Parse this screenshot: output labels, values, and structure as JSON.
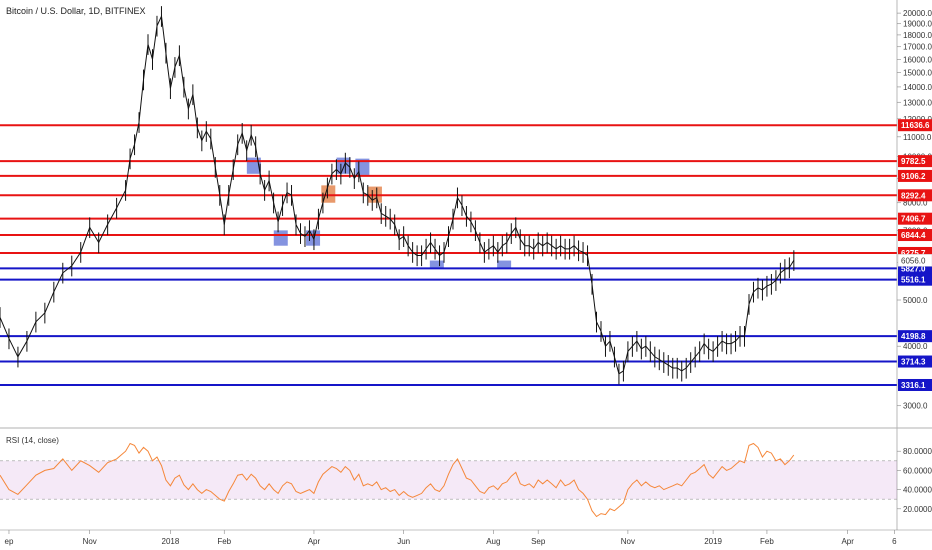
{
  "chart_data": [
    {
      "type": "line",
      "title": "Bitcoin / U.S. Dollar, 1D, BITFINEX",
      "ylim": [
        2800,
        20500
      ],
      "price_ticks": [
        20000,
        19000,
        18000,
        17000,
        16000,
        15000,
        14000,
        13000,
        12000,
        11000,
        10000,
        9000,
        8000,
        7000,
        6000,
        5000,
        4000,
        3000
      ],
      "x_ticks": [
        {
          "label": "ep",
          "t": 0.01
        },
        {
          "label": "Nov",
          "t": 0.1
        },
        {
          "label": "2018",
          "t": 0.19
        },
        {
          "label": "Feb",
          "t": 0.25
        },
        {
          "label": "Apr",
          "t": 0.35
        },
        {
          "label": "Jun",
          "t": 0.45
        },
        {
          "label": "Aug",
          "t": 0.55
        },
        {
          "label": "Sep",
          "t": 0.6
        },
        {
          "label": "Nov",
          "t": 0.7
        },
        {
          "label": "2019",
          "t": 0.795
        },
        {
          "label": "Feb",
          "t": 0.855
        },
        {
          "label": "Apr",
          "t": 0.945
        },
        {
          "label": "6",
          "t": 0.997
        }
      ],
      "resistance_levels": [
        11636.6,
        9782.5,
        9106.2,
        8292.4,
        7406.7,
        6844.4,
        6275.7
      ],
      "support_levels": [
        5827.0,
        5516.1,
        4198.8,
        3714.3,
        3316.1
      ],
      "current_price": 6056.0,
      "resistance_color": "#e81313",
      "support_color": "#1515c8",
      "price_series": [
        [
          0.0,
          4600
        ],
        [
          0.01,
          4150
        ],
        [
          0.02,
          3800
        ],
        [
          0.03,
          4100
        ],
        [
          0.04,
          4500
        ],
        [
          0.05,
          4700
        ],
        [
          0.06,
          5200
        ],
        [
          0.07,
          5700
        ],
        [
          0.08,
          5900
        ],
        [
          0.09,
          6300
        ],
        [
          0.1,
          7100
        ],
        [
          0.11,
          6600
        ],
        [
          0.12,
          7200
        ],
        [
          0.13,
          7800
        ],
        [
          0.14,
          8500
        ],
        [
          0.145,
          9900
        ],
        [
          0.15,
          10600
        ],
        [
          0.155,
          11800
        ],
        [
          0.16,
          14500
        ],
        [
          0.165,
          17200
        ],
        [
          0.17,
          16000
        ],
        [
          0.175,
          18800
        ],
        [
          0.18,
          19700
        ],
        [
          0.185,
          16500
        ],
        [
          0.19,
          13900
        ],
        [
          0.195,
          15400
        ],
        [
          0.2,
          16300
        ],
        [
          0.205,
          14000
        ],
        [
          0.21,
          12600
        ],
        [
          0.215,
          13500
        ],
        [
          0.22,
          11500
        ],
        [
          0.225,
          10800
        ],
        [
          0.23,
          11300
        ],
        [
          0.235,
          10900
        ],
        [
          0.24,
          9500
        ],
        [
          0.245,
          8300
        ],
        [
          0.25,
          7200
        ],
        [
          0.255,
          8300
        ],
        [
          0.26,
          9400
        ],
        [
          0.265,
          10600
        ],
        [
          0.27,
          11200
        ],
        [
          0.275,
          10300
        ],
        [
          0.28,
          11100
        ],
        [
          0.285,
          10500
        ],
        [
          0.29,
          9200
        ],
        [
          0.295,
          8500
        ],
        [
          0.3,
          8900
        ],
        [
          0.305,
          8000
        ],
        [
          0.31,
          7300
        ],
        [
          0.315,
          7900
        ],
        [
          0.32,
          8400
        ],
        [
          0.325,
          8300
        ],
        [
          0.33,
          7200
        ],
        [
          0.335,
          6900
        ],
        [
          0.34,
          6800
        ],
        [
          0.345,
          7000
        ],
        [
          0.35,
          6700
        ],
        [
          0.355,
          7400
        ],
        [
          0.36,
          8000
        ],
        [
          0.365,
          8600
        ],
        [
          0.37,
          9200
        ],
        [
          0.375,
          9400
        ],
        [
          0.38,
          9200
        ],
        [
          0.385,
          9700
        ],
        [
          0.39,
          9500
        ],
        [
          0.395,
          9000
        ],
        [
          0.4,
          9300
        ],
        [
          0.405,
          8400
        ],
        [
          0.41,
          8300
        ],
        [
          0.415,
          8100
        ],
        [
          0.42,
          8200
        ],
        [
          0.425,
          7600
        ],
        [
          0.43,
          7500
        ],
        [
          0.435,
          7400
        ],
        [
          0.44,
          7200
        ],
        [
          0.445,
          6700
        ],
        [
          0.45,
          6800
        ],
        [
          0.455,
          6500
        ],
        [
          0.46,
          6300
        ],
        [
          0.465,
          6200
        ],
        [
          0.47,
          6200
        ],
        [
          0.475,
          6400
        ],
        [
          0.48,
          6600
        ],
        [
          0.485,
          6400
        ],
        [
          0.49,
          6200
        ],
        [
          0.495,
          6300
        ],
        [
          0.5,
          6800
        ],
        [
          0.505,
          7400
        ],
        [
          0.51,
          8200
        ],
        [
          0.515,
          7900
        ],
        [
          0.52,
          7500
        ],
        [
          0.525,
          7300
        ],
        [
          0.53,
          7000
        ],
        [
          0.535,
          6600
        ],
        [
          0.54,
          6300
        ],
        [
          0.545,
          6400
        ],
        [
          0.55,
          6500
        ],
        [
          0.555,
          6300
        ],
        [
          0.56,
          6500
        ],
        [
          0.565,
          6600
        ],
        [
          0.57,
          6900
        ],
        [
          0.575,
          7100
        ],
        [
          0.58,
          6700
        ],
        [
          0.585,
          6500
        ],
        [
          0.59,
          6500
        ],
        [
          0.595,
          6400
        ],
        [
          0.6,
          6600
        ],
        [
          0.605,
          6500
        ],
        [
          0.61,
          6600
        ],
        [
          0.615,
          6500
        ],
        [
          0.62,
          6400
        ],
        [
          0.625,
          6500
        ],
        [
          0.63,
          6400
        ],
        [
          0.635,
          6400
        ],
        [
          0.64,
          6500
        ],
        [
          0.645,
          6350
        ],
        [
          0.65,
          6300
        ],
        [
          0.655,
          6200
        ],
        [
          0.66,
          5400
        ],
        [
          0.665,
          4500
        ],
        [
          0.67,
          4300
        ],
        [
          0.675,
          4000
        ],
        [
          0.68,
          4100
        ],
        [
          0.685,
          3800
        ],
        [
          0.69,
          3500
        ],
        [
          0.695,
          3550
        ],
        [
          0.7,
          3900
        ],
        [
          0.705,
          4000
        ],
        [
          0.71,
          4100
        ],
        [
          0.715,
          3950
        ],
        [
          0.72,
          4000
        ],
        [
          0.725,
          3900
        ],
        [
          0.73,
          3800
        ],
        [
          0.735,
          3750
        ],
        [
          0.74,
          3700
        ],
        [
          0.745,
          3650
        ],
        [
          0.75,
          3600
        ],
        [
          0.755,
          3600
        ],
        [
          0.76,
          3550
        ],
        [
          0.765,
          3600
        ],
        [
          0.77,
          3700
        ],
        [
          0.775,
          3800
        ],
        [
          0.78,
          3900
        ],
        [
          0.785,
          4050
        ],
        [
          0.79,
          3950
        ],
        [
          0.795,
          3900
        ],
        [
          0.8,
          4000
        ],
        [
          0.805,
          4100
        ],
        [
          0.81,
          4050
        ],
        [
          0.815,
          4050
        ],
        [
          0.82,
          4100
        ],
        [
          0.825,
          4200
        ],
        [
          0.83,
          4200
        ],
        [
          0.835,
          4900
        ],
        [
          0.84,
          5200
        ],
        [
          0.845,
          5300
        ],
        [
          0.85,
          5250
        ],
        [
          0.855,
          5350
        ],
        [
          0.86,
          5400
        ],
        [
          0.865,
          5500
        ],
        [
          0.87,
          5700
        ],
        [
          0.875,
          5800
        ],
        [
          0.88,
          5850
        ],
        [
          0.885,
          6056
        ]
      ]
    },
    {
      "type": "line",
      "title": "RSI (14, close)",
      "ylim": [
        0,
        100
      ],
      "ticks": [
        80.0,
        60.0,
        40.0,
        20.0
      ],
      "band": [
        30,
        70
      ],
      "line_color": "#f5873a",
      "band_color": "#9c27b0",
      "rsi_series": [
        [
          0.0,
          55
        ],
        [
          0.01,
          40
        ],
        [
          0.02,
          35
        ],
        [
          0.03,
          45
        ],
        [
          0.04,
          55
        ],
        [
          0.05,
          60
        ],
        [
          0.06,
          62
        ],
        [
          0.07,
          72
        ],
        [
          0.08,
          60
        ],
        [
          0.09,
          70
        ],
        [
          0.1,
          65
        ],
        [
          0.11,
          58
        ],
        [
          0.12,
          68
        ],
        [
          0.13,
          72
        ],
        [
          0.14,
          80
        ],
        [
          0.145,
          88
        ],
        [
          0.15,
          86
        ],
        [
          0.155,
          78
        ],
        [
          0.16,
          84
        ],
        [
          0.165,
          80
        ],
        [
          0.17,
          70
        ],
        [
          0.175,
          74
        ],
        [
          0.18,
          65
        ],
        [
          0.185,
          50
        ],
        [
          0.19,
          44
        ],
        [
          0.195,
          52
        ],
        [
          0.2,
          55
        ],
        [
          0.205,
          45
        ],
        [
          0.21,
          40
        ],
        [
          0.215,
          46
        ],
        [
          0.22,
          40
        ],
        [
          0.225,
          36
        ],
        [
          0.23,
          40
        ],
        [
          0.235,
          38
        ],
        [
          0.24,
          34
        ],
        [
          0.245,
          30
        ],
        [
          0.25,
          28
        ],
        [
          0.255,
          38
        ],
        [
          0.26,
          46
        ],
        [
          0.265,
          55
        ],
        [
          0.27,
          56
        ],
        [
          0.275,
          50
        ],
        [
          0.28,
          56
        ],
        [
          0.285,
          52
        ],
        [
          0.29,
          44
        ],
        [
          0.295,
          40
        ],
        [
          0.3,
          46
        ],
        [
          0.305,
          40
        ],
        [
          0.31,
          36
        ],
        [
          0.315,
          44
        ],
        [
          0.32,
          48
        ],
        [
          0.325,
          46
        ],
        [
          0.33,
          38
        ],
        [
          0.335,
          36
        ],
        [
          0.34,
          38
        ],
        [
          0.345,
          40
        ],
        [
          0.35,
          36
        ],
        [
          0.355,
          48
        ],
        [
          0.36,
          56
        ],
        [
          0.365,
          60
        ],
        [
          0.37,
          64
        ],
        [
          0.375,
          62
        ],
        [
          0.38,
          58
        ],
        [
          0.385,
          64
        ],
        [
          0.39,
          60
        ],
        [
          0.395,
          50
        ],
        [
          0.4,
          56
        ],
        [
          0.405,
          44
        ],
        [
          0.41,
          46
        ],
        [
          0.415,
          44
        ],
        [
          0.42,
          48
        ],
        [
          0.425,
          40
        ],
        [
          0.43,
          42
        ],
        [
          0.435,
          38
        ],
        [
          0.44,
          40
        ],
        [
          0.445,
          34
        ],
        [
          0.45,
          38
        ],
        [
          0.455,
          34
        ],
        [
          0.46,
          32
        ],
        [
          0.465,
          34
        ],
        [
          0.47,
          36
        ],
        [
          0.475,
          42
        ],
        [
          0.48,
          46
        ],
        [
          0.485,
          40
        ],
        [
          0.49,
          38
        ],
        [
          0.495,
          44
        ],
        [
          0.5,
          56
        ],
        [
          0.505,
          66
        ],
        [
          0.51,
          72
        ],
        [
          0.515,
          62
        ],
        [
          0.52,
          52
        ],
        [
          0.525,
          50
        ],
        [
          0.53,
          44
        ],
        [
          0.535,
          38
        ],
        [
          0.54,
          36
        ],
        [
          0.545,
          42
        ],
        [
          0.55,
          44
        ],
        [
          0.555,
          40
        ],
        [
          0.56,
          46
        ],
        [
          0.565,
          48
        ],
        [
          0.57,
          54
        ],
        [
          0.575,
          58
        ],
        [
          0.58,
          46
        ],
        [
          0.585,
          44
        ],
        [
          0.59,
          46
        ],
        [
          0.595,
          42
        ],
        [
          0.6,
          50
        ],
        [
          0.605,
          46
        ],
        [
          0.61,
          50
        ],
        [
          0.615,
          46
        ],
        [
          0.62,
          42
        ],
        [
          0.625,
          50
        ],
        [
          0.63,
          44
        ],
        [
          0.635,
          46
        ],
        [
          0.64,
          50
        ],
        [
          0.645,
          40
        ],
        [
          0.65,
          36
        ],
        [
          0.655,
          30
        ],
        [
          0.66,
          18
        ],
        [
          0.665,
          12
        ],
        [
          0.67,
          15
        ],
        [
          0.675,
          14
        ],
        [
          0.68,
          20
        ],
        [
          0.685,
          18
        ],
        [
          0.69,
          22
        ],
        [
          0.695,
          26
        ],
        [
          0.7,
          40
        ],
        [
          0.705,
          46
        ],
        [
          0.71,
          50
        ],
        [
          0.715,
          44
        ],
        [
          0.72,
          48
        ],
        [
          0.725,
          44
        ],
        [
          0.73,
          42
        ],
        [
          0.735,
          44
        ],
        [
          0.74,
          40
        ],
        [
          0.745,
          42
        ],
        [
          0.75,
          44
        ],
        [
          0.755,
          46
        ],
        [
          0.76,
          44
        ],
        [
          0.765,
          50
        ],
        [
          0.77,
          56
        ],
        [
          0.775,
          58
        ],
        [
          0.78,
          62
        ],
        [
          0.785,
          66
        ],
        [
          0.79,
          56
        ],
        [
          0.795,
          52
        ],
        [
          0.8,
          58
        ],
        [
          0.805,
          64
        ],
        [
          0.81,
          60
        ],
        [
          0.815,
          62
        ],
        [
          0.82,
          66
        ],
        [
          0.825,
          70
        ],
        [
          0.83,
          68
        ],
        [
          0.835,
          86
        ],
        [
          0.84,
          88
        ],
        [
          0.845,
          84
        ],
        [
          0.85,
          74
        ],
        [
          0.855,
          80
        ],
        [
          0.86,
          78
        ],
        [
          0.865,
          70
        ],
        [
          0.87,
          72
        ],
        [
          0.875,
          66
        ],
        [
          0.88,
          70
        ],
        [
          0.885,
          76
        ]
      ]
    }
  ]
}
